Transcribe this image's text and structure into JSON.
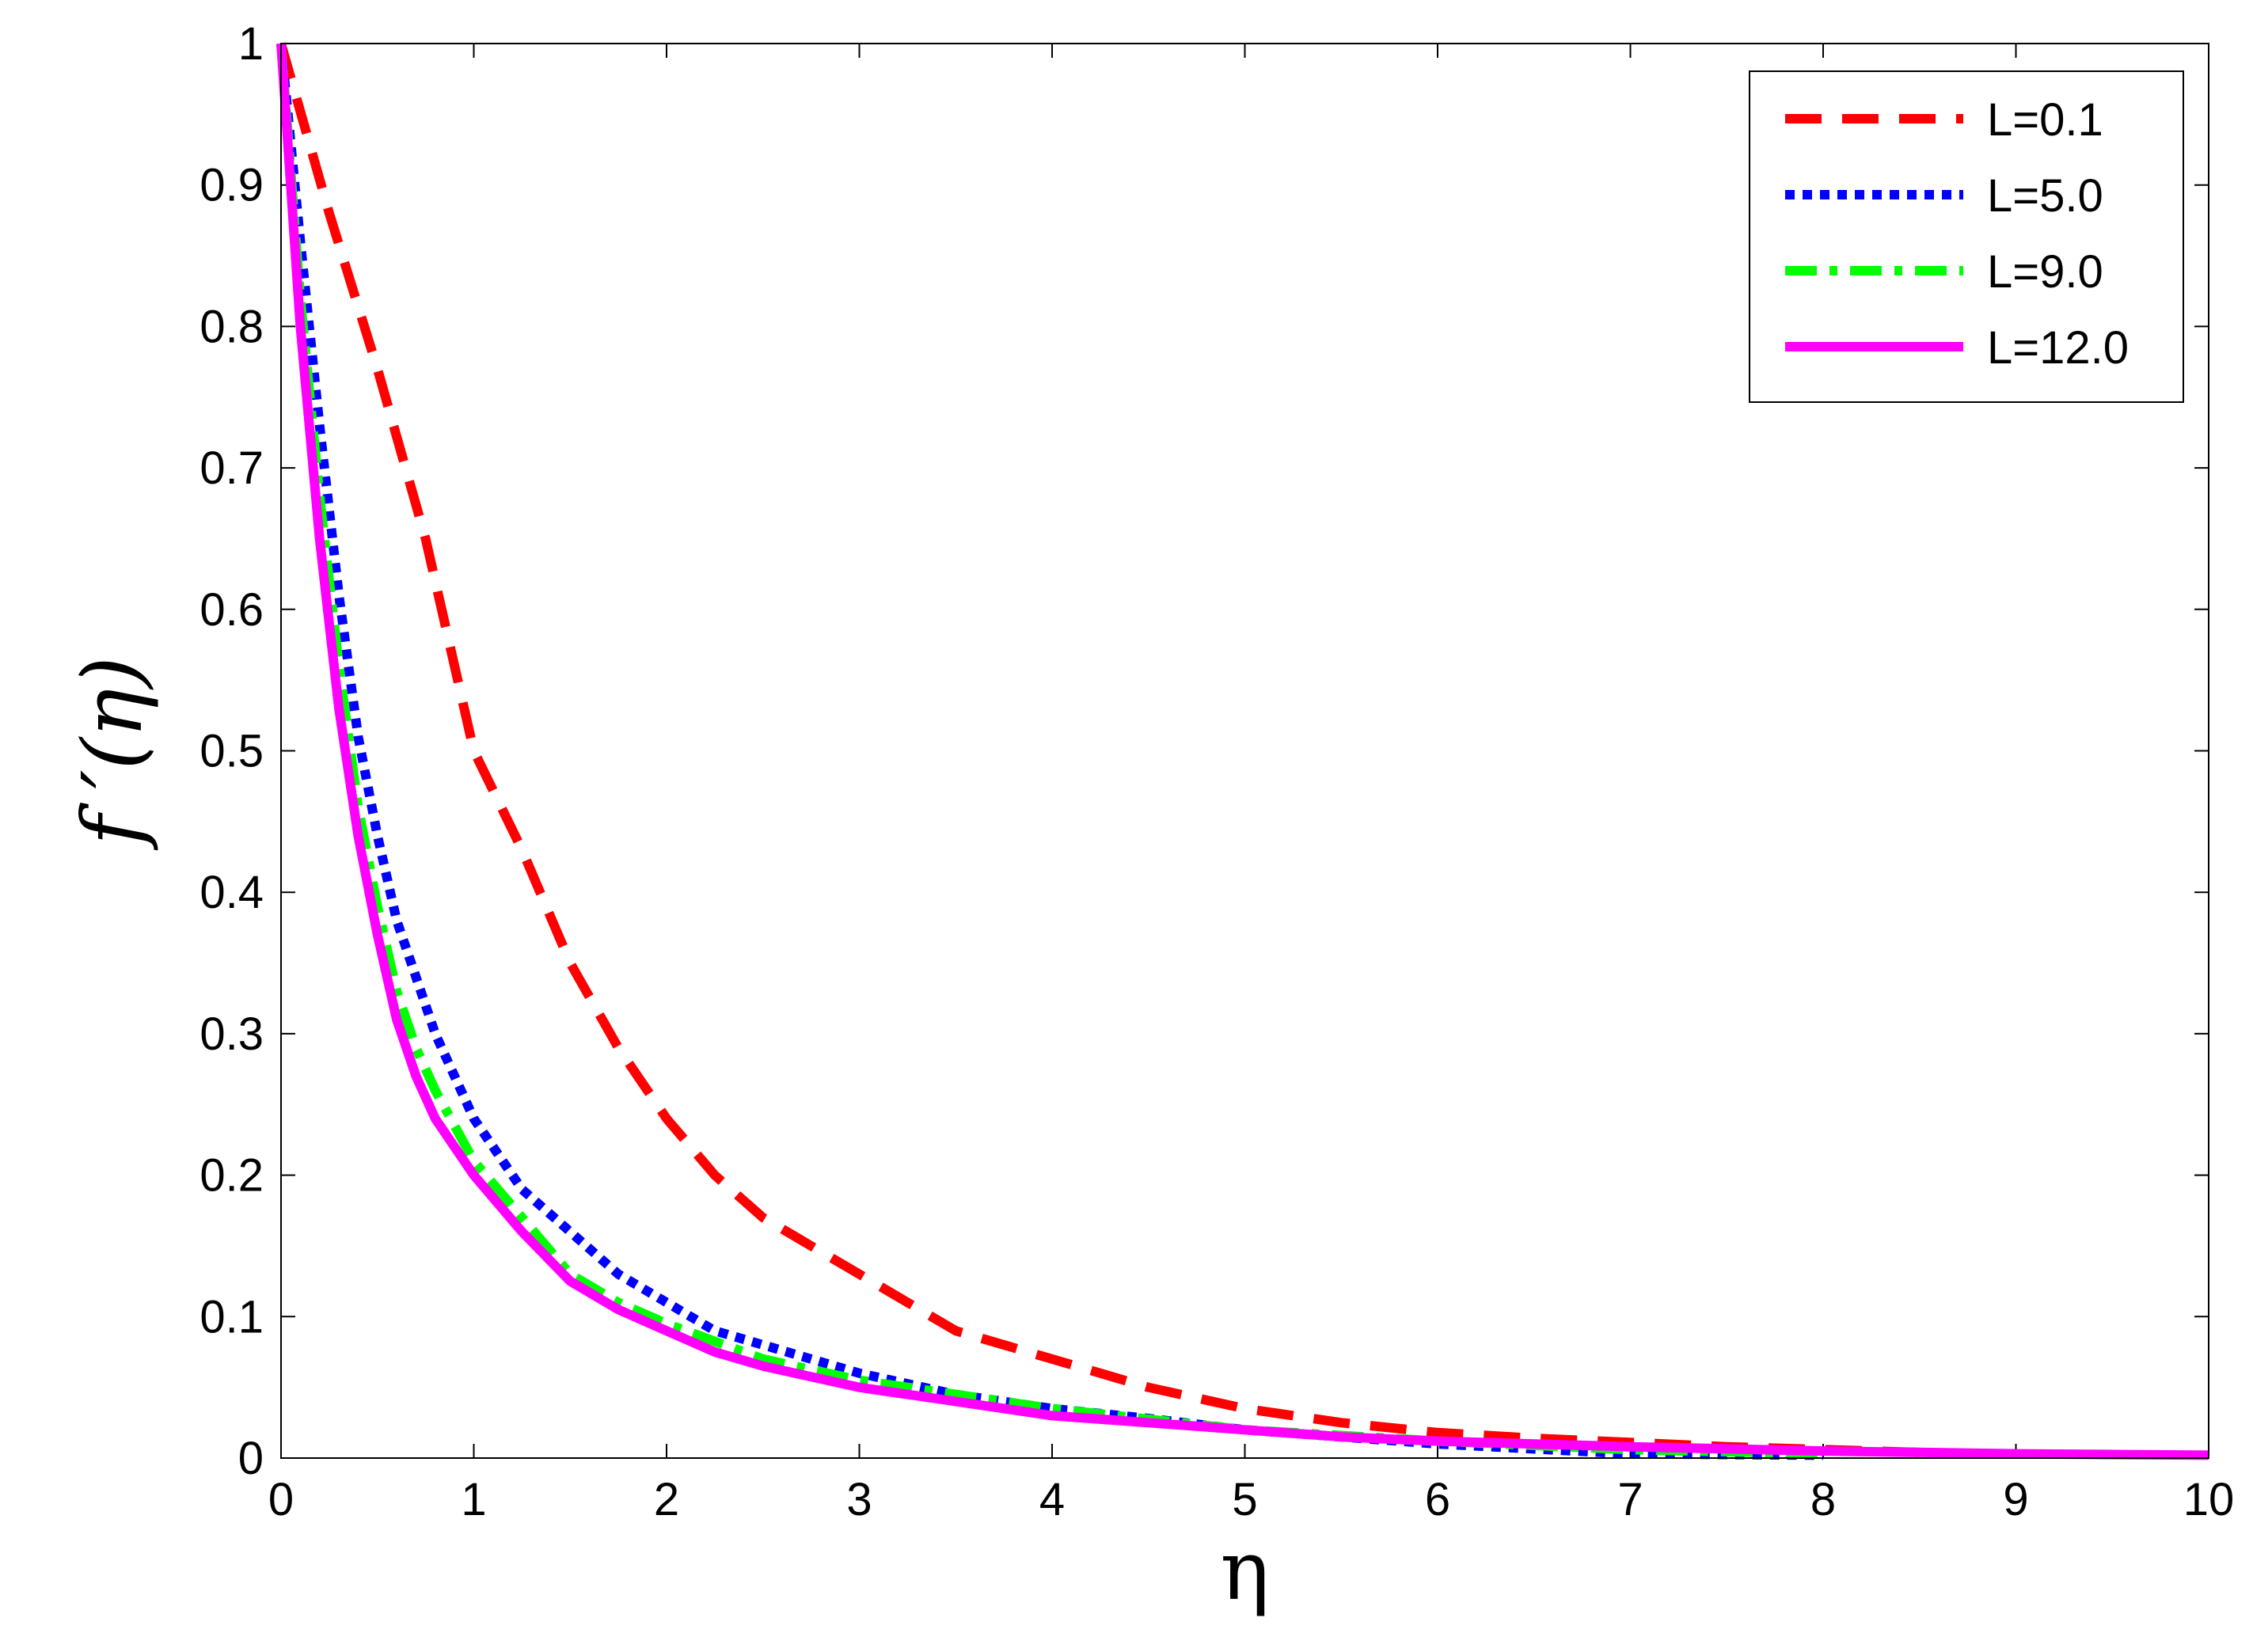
{
  "chart_data": {
    "type": "line",
    "title": "",
    "xlabel": "η",
    "ylabel": "f ′(η)",
    "xlim": [
      0,
      10
    ],
    "ylim": [
      0,
      1
    ],
    "xticks": [
      "0",
      "1",
      "2",
      "3",
      "4",
      "5",
      "6",
      "7",
      "8",
      "9",
      "10"
    ],
    "yticks": [
      "0",
      "0.1",
      "0.2",
      "0.3",
      "0.4",
      "0.5",
      "0.6",
      "0.7",
      "0.8",
      "0.9",
      "1"
    ],
    "grid": false,
    "legend_position": "top-right",
    "series": [
      {
        "name": "L=0.1",
        "color": "#ff0000",
        "style": "dashed",
        "x": [
          0,
          0.25,
          0.5,
          0.75,
          1.0,
          1.25,
          1.5,
          1.75,
          2.0,
          2.25,
          2.5,
          2.75,
          3.0,
          3.25,
          3.5,
          3.75,
          4.0,
          4.5,
          5.0,
          5.5,
          6.0,
          6.5,
          7.0,
          7.5,
          8.0,
          8.5
        ],
        "y": [
          1.0,
          0.88,
          0.77,
          0.65,
          0.5,
          0.43,
          0.35,
          0.29,
          0.24,
          0.2,
          0.17,
          0.15,
          0.13,
          0.11,
          0.09,
          0.08,
          0.07,
          0.05,
          0.035,
          0.025,
          0.018,
          0.014,
          0.011,
          0.008,
          0.006,
          0.004
        ]
      },
      {
        "name": "L=5.0",
        "color": "#0000ff",
        "style": "dotted",
        "x": [
          0,
          0.1,
          0.2,
          0.3,
          0.4,
          0.5,
          0.6,
          0.7,
          0.8,
          1.0,
          1.25,
          1.5,
          1.75,
          2.0,
          2.25,
          2.5,
          3.0,
          3.5,
          4.0,
          4.5,
          5.0,
          6.0,
          7.0,
          8.0
        ],
        "y": [
          1.0,
          0.86,
          0.73,
          0.61,
          0.51,
          0.44,
          0.38,
          0.34,
          0.3,
          0.24,
          0.19,
          0.16,
          0.13,
          0.11,
          0.09,
          0.08,
          0.06,
          0.045,
          0.035,
          0.028,
          0.02,
          0.01,
          0.003,
          0.002
        ]
      },
      {
        "name": "L=9.0",
        "color": "#00ff00",
        "style": "dashdot",
        "x": [
          0,
          0.1,
          0.2,
          0.3,
          0.4,
          0.5,
          0.6,
          0.7,
          0.8,
          1.0,
          1.25,
          1.5,
          1.75,
          2.0,
          2.5,
          3.0,
          3.5,
          4.0,
          5.0,
          6.0,
          7.0,
          8.0
        ],
        "y": [
          1.0,
          0.82,
          0.68,
          0.56,
          0.46,
          0.39,
          0.33,
          0.29,
          0.26,
          0.21,
          0.17,
          0.13,
          0.11,
          0.095,
          0.07,
          0.055,
          0.045,
          0.035,
          0.02,
          0.012,
          0.006,
          0.003
        ]
      },
      {
        "name": "L=12.0",
        "color": "#ff00ff",
        "style": "solid",
        "x": [
          0,
          0.1,
          0.2,
          0.3,
          0.4,
          0.5,
          0.6,
          0.7,
          0.8,
          1.0,
          1.25,
          1.5,
          1.75,
          2.0,
          2.25,
          2.5,
          3.0,
          3.5,
          4.0,
          4.5,
          5.0,
          5.5,
          6.0,
          7.0,
          8.0,
          9.0,
          10.0
        ],
        "y": [
          1.0,
          0.8,
          0.65,
          0.53,
          0.44,
          0.37,
          0.31,
          0.27,
          0.24,
          0.2,
          0.16,
          0.125,
          0.105,
          0.09,
          0.075,
          0.065,
          0.05,
          0.04,
          0.03,
          0.025,
          0.02,
          0.015,
          0.012,
          0.008,
          0.005,
          0.003,
          0.002
        ]
      }
    ]
  }
}
